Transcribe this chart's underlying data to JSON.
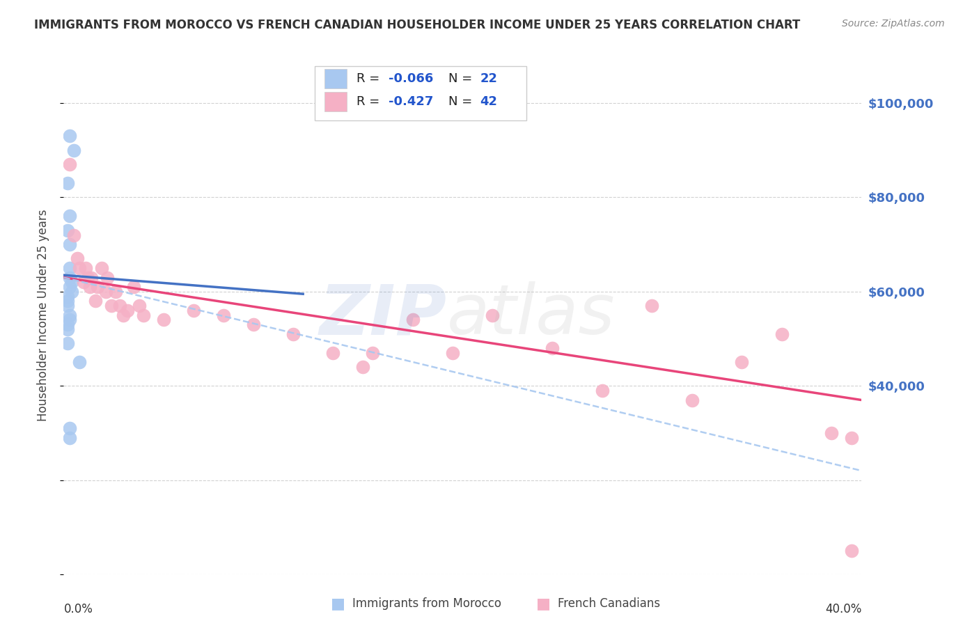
{
  "title": "IMMIGRANTS FROM MOROCCO VS FRENCH CANADIAN HOUSEHOLDER INCOME UNDER 25 YEARS CORRELATION CHART",
  "source": "Source: ZipAtlas.com",
  "ylabel": "Householder Income Under 25 years",
  "xmin": 0.0,
  "xmax": 0.4,
  "ymin": 0,
  "ymax": 110000,
  "color_blue": "#a8c8f0",
  "color_pink": "#f5b0c5",
  "line_blue": "#4472c4",
  "line_pink": "#e8457a",
  "line_dashed_color": "#a8c8f0",
  "background_color": "#ffffff",
  "grid_color": "#cccccc",
  "title_color": "#333333",
  "right_label_color": "#4472c4",
  "blue_scatter_x": [
    0.003,
    0.005,
    0.002,
    0.003,
    0.002,
    0.003,
    0.003,
    0.003,
    0.004,
    0.003,
    0.004,
    0.002,
    0.002,
    0.002,
    0.003,
    0.003,
    0.002,
    0.002,
    0.002,
    0.008,
    0.003,
    0.003
  ],
  "blue_scatter_y": [
    93000,
    90000,
    83000,
    76000,
    73000,
    70000,
    65000,
    63000,
    62000,
    61000,
    60000,
    59000,
    58000,
    57000,
    55000,
    54000,
    53000,
    52000,
    49000,
    45000,
    31000,
    29000
  ],
  "pink_scatter_x": [
    0.003,
    0.005,
    0.007,
    0.008,
    0.01,
    0.011,
    0.012,
    0.013,
    0.014,
    0.016,
    0.017,
    0.019,
    0.021,
    0.022,
    0.024,
    0.026,
    0.028,
    0.03,
    0.032,
    0.035,
    0.038,
    0.04,
    0.05,
    0.065,
    0.08,
    0.095,
    0.115,
    0.135,
    0.155,
    0.175,
    0.195,
    0.215,
    0.245,
    0.27,
    0.295,
    0.315,
    0.34,
    0.36,
    0.385,
    0.395,
    0.395,
    0.15
  ],
  "pink_scatter_y": [
    87000,
    72000,
    67000,
    65000,
    62000,
    65000,
    63000,
    61000,
    63000,
    58000,
    61000,
    65000,
    60000,
    63000,
    57000,
    60000,
    57000,
    55000,
    56000,
    61000,
    57000,
    55000,
    54000,
    56000,
    55000,
    53000,
    51000,
    47000,
    47000,
    54000,
    47000,
    55000,
    48000,
    39000,
    57000,
    37000,
    45000,
    51000,
    30000,
    29000,
    5000,
    44000
  ],
  "blue_line_x": [
    0.0,
    0.12
  ],
  "blue_line_y": [
    63500,
    59500
  ],
  "pink_line_x": [
    0.0,
    0.4
  ],
  "pink_line_y": [
    63000,
    37000
  ],
  "dashed_line_x": [
    0.0,
    0.4
  ],
  "dashed_line_y": [
    63000,
    22000
  ]
}
